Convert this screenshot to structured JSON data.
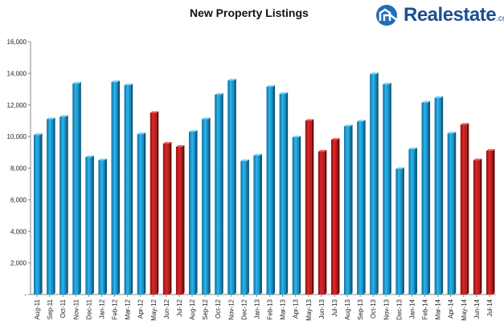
{
  "chart_data": {
    "type": "bar",
    "title": "New Property Listings",
    "xlabel": "",
    "ylabel": "",
    "ylim": [
      0,
      16000
    ],
    "yticks": [
      "-",
      "2,000",
      "4,000",
      "6,000",
      "8,000",
      "10,000",
      "12,000",
      "14,000",
      "16,000"
    ],
    "ytick_values": [
      0,
      2000,
      4000,
      6000,
      8000,
      10000,
      12000,
      14000,
      16000
    ],
    "grid": false,
    "colors": {
      "normal": "#1aa3e0",
      "highlight": "#d42020"
    },
    "categories": [
      "Aug-11",
      "Sep-11",
      "Oct-11",
      "Nov-11",
      "Dec-11",
      "Jan-12",
      "Feb-12",
      "Mar-12",
      "Apr-12",
      "May-12",
      "Jun-12",
      "Jul-12",
      "Aug-12",
      "Sep-12",
      "Oct-12",
      "Nov-12",
      "Dec-12",
      "Jan-13",
      "Feb-13",
      "Mar-13",
      "Apr-13",
      "May-13",
      "Jun-13",
      "Jul-13",
      "Aug-13",
      "Sep-13",
      "Oct-13",
      "Nov-13",
      "Dec-13",
      "Jan-14",
      "Feb-14",
      "Mar-14",
      "Apr-14",
      "May-14",
      "Jun-14",
      "Jul-14"
    ],
    "values": [
      10100,
      11100,
      11250,
      13350,
      8700,
      8500,
      13450,
      13250,
      10150,
      11500,
      9550,
      9350,
      10300,
      11100,
      12650,
      13550,
      8450,
      8800,
      13150,
      12700,
      9950,
      11000,
      9050,
      9800,
      10650,
      10950,
      13950,
      13300,
      7950,
      9200,
      12150,
      12450,
      10200,
      10750,
      8500,
      9100
    ],
    "highlighted": [
      false,
      false,
      false,
      false,
      false,
      false,
      false,
      false,
      false,
      true,
      true,
      true,
      false,
      false,
      false,
      false,
      false,
      false,
      false,
      false,
      false,
      true,
      true,
      true,
      false,
      false,
      false,
      false,
      false,
      false,
      false,
      false,
      false,
      true,
      true,
      true
    ]
  },
  "logo": {
    "name": "Realestate",
    "suffix": ".co.nz",
    "icon": "realestate-logo-icon"
  }
}
